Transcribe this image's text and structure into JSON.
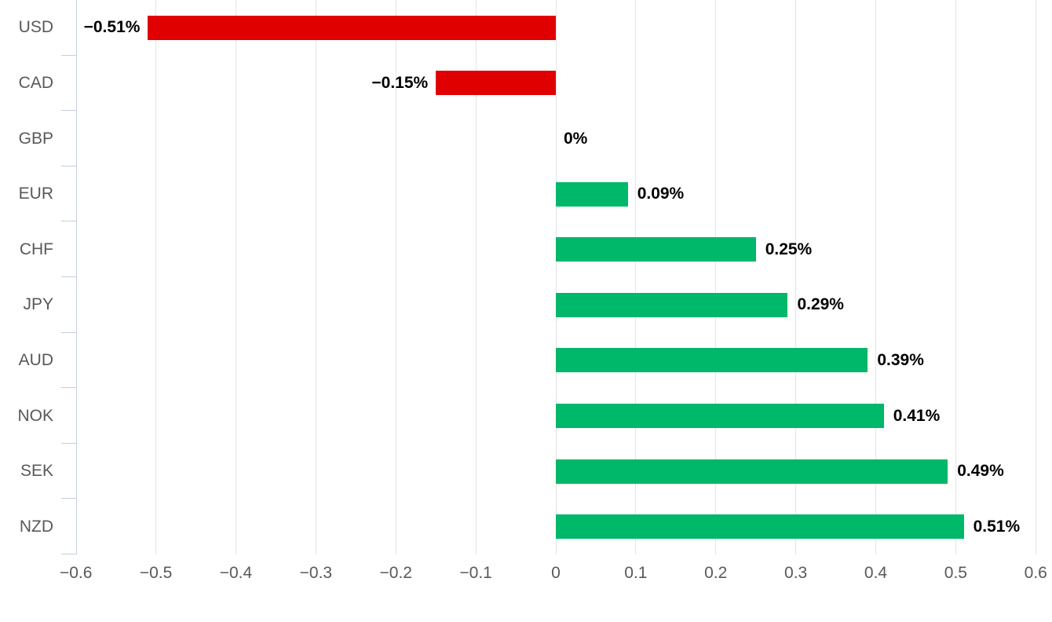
{
  "chart_data": {
    "type": "bar",
    "orientation": "horizontal",
    "title": "",
    "categories": [
      "USD",
      "CAD",
      "GBP",
      "EUR",
      "CHF",
      "JPY",
      "AUD",
      "NOK",
      "SEK",
      "NZD"
    ],
    "values": [
      -0.51,
      -0.15,
      0,
      0.09,
      0.25,
      0.29,
      0.39,
      0.41,
      0.49,
      0.51
    ],
    "labels": [
      "−0.51%",
      "−0.15%",
      "0%",
      "0.09%",
      "0.25%",
      "0.29%",
      "0.39%",
      "0.41%",
      "0.49%",
      "0.51%"
    ],
    "x_ticks": [
      "−0.6",
      "−0.5",
      "−0.4",
      "−0.3",
      "−0.2",
      "−0.1",
      "0",
      "0.1",
      "0.2",
      "0.3",
      "0.4",
      "0.5",
      "0.6"
    ],
    "x_tick_values": [
      -0.6,
      -0.5,
      -0.4,
      -0.3,
      -0.2,
      -0.1,
      0,
      0.1,
      0.2,
      0.3,
      0.4,
      0.5,
      0.6
    ],
    "xlim": [
      -0.6,
      0.6
    ],
    "grid": "vertical",
    "legend": "none",
    "unit": "%",
    "colors": {
      "positive": "#00b869",
      "negative": "#e00000",
      "gridline": "#e5e5e8",
      "axis": "#c7cddf",
      "axis_text": "#58595b",
      "value_text": "#000000"
    }
  }
}
